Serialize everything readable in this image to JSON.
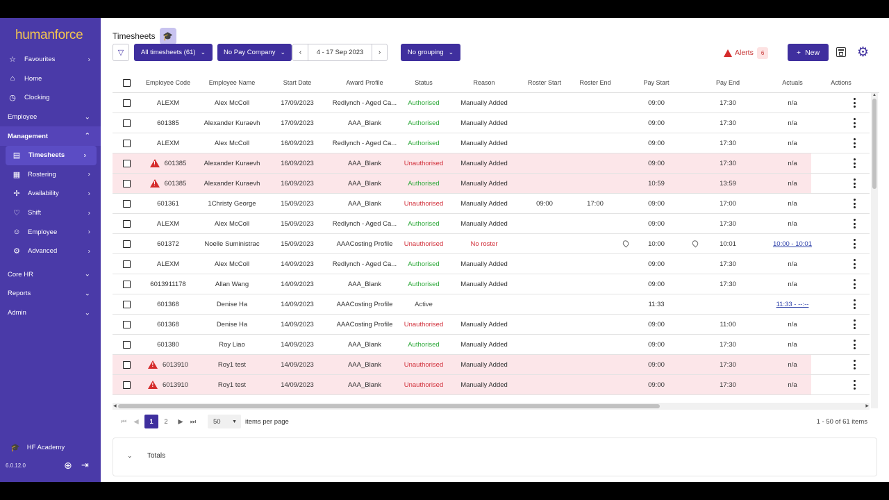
{
  "app": {
    "logo": "humanforce",
    "version": "6.0.12.0"
  },
  "sidebar": {
    "items": [
      {
        "label": "Favourites",
        "icon": "star-icon",
        "type": "item",
        "chev": "›"
      },
      {
        "label": "Home",
        "icon": "home-icon",
        "type": "item",
        "chev": ""
      },
      {
        "label": "Clocking",
        "icon": "clock-icon",
        "type": "item",
        "chev": ""
      },
      {
        "label": "Employee",
        "icon": "",
        "type": "section",
        "chev": "⌄"
      },
      {
        "label": "Management",
        "icon": "",
        "type": "open",
        "chev": "⌃"
      },
      {
        "label": "Timesheets",
        "icon": "timesheet-icon",
        "type": "active",
        "chev": "›"
      },
      {
        "label": "Rostering",
        "icon": "calendar-icon",
        "type": "sub",
        "chev": "›"
      },
      {
        "label": "Availability",
        "icon": "availability-icon",
        "type": "sub",
        "chev": "›"
      },
      {
        "label": "Shift",
        "icon": "shift-icon",
        "type": "sub",
        "chev": "›"
      },
      {
        "label": "Employee",
        "icon": "employee-icon",
        "type": "sub",
        "chev": "›"
      },
      {
        "label": "Advanced",
        "icon": "advanced-icon",
        "type": "sub",
        "chev": "›"
      },
      {
        "label": "Core HR",
        "icon": "",
        "type": "section-gap",
        "chev": "⌄"
      },
      {
        "label": "Reports",
        "icon": "",
        "type": "section",
        "chev": "⌄"
      },
      {
        "label": "Admin",
        "icon": "",
        "type": "section",
        "chev": "⌄"
      }
    ],
    "academy": "HF Academy"
  },
  "header": {
    "title": "Timesheets"
  },
  "toolbar": {
    "all_timesheets": "All timesheets (61)",
    "pay_company": "No Pay Company",
    "date_range": "4 - 17 Sep 2023",
    "grouping": "No grouping",
    "alerts_label": "Alerts",
    "alerts_count": "6",
    "new_label": "New"
  },
  "table": {
    "columns": [
      "Employee Code",
      "Employee Name",
      "Start Date",
      "Award Profile",
      "Status",
      "Reason",
      "Roster Start",
      "Roster End",
      "Pay Start",
      "Pay End",
      "Actuals",
      "Actions"
    ],
    "rows": [
      {
        "alert": false,
        "code": "ALEXM",
        "name": "Alex McColl",
        "start": "17/09/2023",
        "award": "Redlynch - Aged Ca...",
        "status": "Authorised",
        "status_type": "auth",
        "reason": "Manually Added",
        "rstart": "",
        "rend": "",
        "pstart": "09:00",
        "pend": "17:30",
        "actuals": "n/a",
        "link": false,
        "pins": false
      },
      {
        "alert": false,
        "code": "601385",
        "name": "Alexander Kuraevh",
        "start": "17/09/2023",
        "award": "AAA_Blank",
        "status": "Authorised",
        "status_type": "auth",
        "reason": "Manually Added",
        "rstart": "",
        "rend": "",
        "pstart": "09:00",
        "pend": "17:30",
        "actuals": "n/a",
        "link": false,
        "pins": false
      },
      {
        "alert": false,
        "code": "ALEXM",
        "name": "Alex McColl",
        "start": "16/09/2023",
        "award": "Redlynch - Aged Ca...",
        "status": "Authorised",
        "status_type": "auth",
        "reason": "Manually Added",
        "rstart": "",
        "rend": "",
        "pstart": "09:00",
        "pend": "17:30",
        "actuals": "n/a",
        "link": false,
        "pins": false
      },
      {
        "alert": true,
        "code": "601385",
        "name": "Alexander Kuraevh",
        "start": "16/09/2023",
        "award": "AAA_Blank",
        "status": "Unauthorised",
        "status_type": "unauth",
        "reason": "Manually Added",
        "rstart": "",
        "rend": "",
        "pstart": "09:00",
        "pend": "17:30",
        "actuals": "n/a",
        "link": false,
        "pins": false
      },
      {
        "alert": true,
        "code": "601385",
        "name": "Alexander Kuraevh",
        "start": "16/09/2023",
        "award": "AAA_Blank",
        "status": "Authorised",
        "status_type": "auth",
        "reason": "Manually Added",
        "rstart": "",
        "rend": "",
        "pstart": "10:59",
        "pend": "13:59",
        "actuals": "n/a",
        "link": false,
        "pins": false
      },
      {
        "alert": false,
        "code": "601361",
        "name": "1Christy George",
        "start": "15/09/2023",
        "award": "AAA_Blank",
        "status": "Unauthorised",
        "status_type": "unauth",
        "reason": "Manually Added",
        "rstart": "09:00",
        "rend": "17:00",
        "pstart": "09:00",
        "pend": "17:00",
        "actuals": "n/a",
        "link": false,
        "pins": false
      },
      {
        "alert": false,
        "code": "ALEXM",
        "name": "Alex McColl",
        "start": "15/09/2023",
        "award": "Redlynch - Aged Ca...",
        "status": "Authorised",
        "status_type": "auth",
        "reason": "Manually Added",
        "rstart": "",
        "rend": "",
        "pstart": "09:00",
        "pend": "17:30",
        "actuals": "n/a",
        "link": false,
        "pins": false
      },
      {
        "alert": false,
        "code": "601372",
        "name": "Noelle Suministrac",
        "start": "15/09/2023",
        "award": "AAACosting Profile",
        "status": "Unauthorised",
        "status_type": "unauth",
        "reason": "No roster",
        "reason_type": "noroster",
        "rstart": "",
        "rend": "",
        "pstart": "10:00",
        "pend": "10:01",
        "actuals": "10:00 - 10:01",
        "link": true,
        "pins": true
      },
      {
        "alert": false,
        "code": "ALEXM",
        "name": "Alex McColl",
        "start": "14/09/2023",
        "award": "Redlynch - Aged Ca...",
        "status": "Authorised",
        "status_type": "auth",
        "reason": "Manually Added",
        "rstart": "",
        "rend": "",
        "pstart": "09:00",
        "pend": "17:30",
        "actuals": "n/a",
        "link": false,
        "pins": false
      },
      {
        "alert": false,
        "code": "601391117​8",
        "name": "Allan Wang",
        "start": "14/09/2023",
        "award": "AAA_Blank",
        "status": "Authorised",
        "status_type": "auth",
        "reason": "Manually Added",
        "rstart": "",
        "rend": "",
        "pstart": "09:00",
        "pend": "17:30",
        "actuals": "n/a",
        "link": false,
        "pins": false
      },
      {
        "alert": false,
        "code": "601368",
        "name": "Denise Ha",
        "start": "14/09/2023",
        "award": "AAACosting Profile",
        "status": "Active",
        "status_type": "active",
        "reason": "",
        "rstart": "",
        "rend": "",
        "pstart": "11:33",
        "pend": "",
        "actuals": "11:33 - --:--",
        "link": true,
        "pins": false
      },
      {
        "alert": false,
        "code": "601368",
        "name": "Denise Ha",
        "start": "14/09/2023",
        "award": "AAACosting Profile",
        "status": "Unauthorised",
        "status_type": "unauth",
        "reason": "Manually Added",
        "rstart": "",
        "rend": "",
        "pstart": "09:00",
        "pend": "11:00",
        "actuals": "n/a",
        "link": false,
        "pins": false
      },
      {
        "alert": false,
        "code": "601380",
        "name": "Roy Liao",
        "start": "14/09/2023",
        "award": "AAA_Blank",
        "status": "Authorised",
        "status_type": "auth",
        "reason": "Manually Added",
        "rstart": "",
        "rend": "",
        "pstart": "09:00",
        "pend": "17:30",
        "actuals": "n/a",
        "link": false,
        "pins": false
      },
      {
        "alert": true,
        "code": "6013910",
        "name": "Roy1 test",
        "start": "14/09/2023",
        "award": "AAA_Blank",
        "status": "Unauthorised",
        "status_type": "unauth",
        "reason": "Manually Added",
        "rstart": "",
        "rend": "",
        "pstart": "09:00",
        "pend": "17:30",
        "actuals": "n/a",
        "link": false,
        "pins": false
      },
      {
        "alert": true,
        "code": "6013910",
        "name": "Roy1 test",
        "start": "14/09/2023",
        "award": "AAA_Blank",
        "status": "Unauthorised",
        "status_type": "unauth",
        "reason": "Manually Added",
        "rstart": "",
        "rend": "",
        "pstart": "09:00",
        "pend": "17:30",
        "actuals": "n/a",
        "link": false,
        "pins": false
      }
    ]
  },
  "pager": {
    "pages": [
      "1",
      "2"
    ],
    "per_page": "50",
    "per_page_label": "items per page",
    "range": "1 - 50 of 61 items"
  },
  "totals": {
    "label": "Totals"
  }
}
